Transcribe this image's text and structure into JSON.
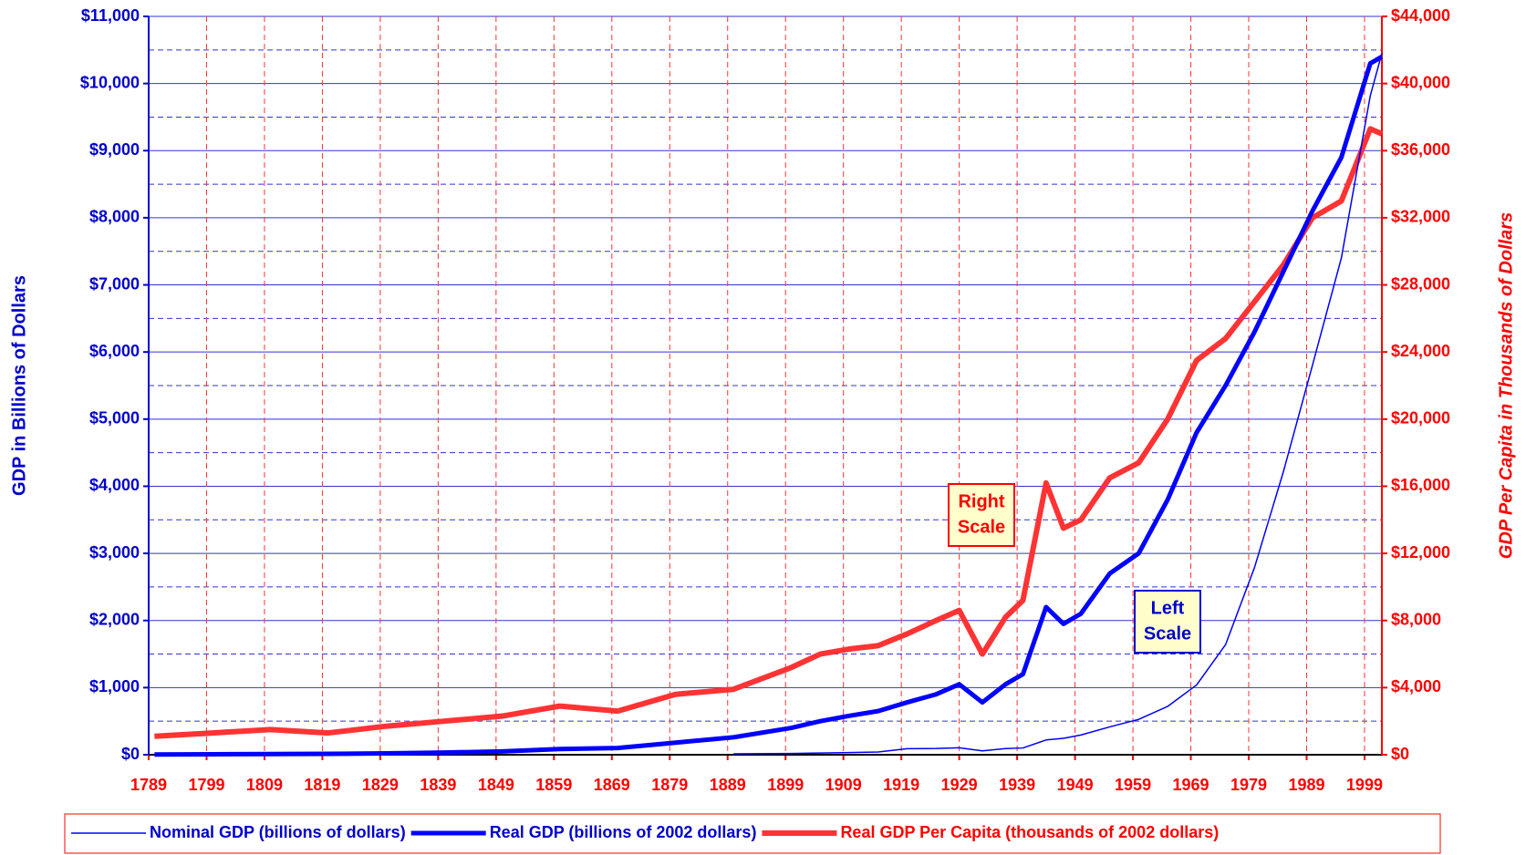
{
  "chart_data": {
    "type": "line",
    "y_label": "GDP in Billions of Dollars",
    "y2_label": "GDP Per Capita in Thousands of Dollars",
    "x": [
      1790,
      1800,
      1810,
      1820,
      1830,
      1840,
      1850,
      1860,
      1870,
      1880,
      1890,
      1900,
      1905,
      1910,
      1915,
      1920,
      1925,
      1929,
      1933,
      1937,
      1940,
      1944,
      1947,
      1950,
      1955,
      1960,
      1965,
      1970,
      1975,
      1980,
      1985,
      1990,
      1995,
      2000,
      2002
    ],
    "series": [
      {
        "name": "Nominal GDP (billions of dollars)",
        "color": "#0000ff",
        "width": 1.5,
        "axis": "y",
        "values": [
          null,
          null,
          null,
          null,
          null,
          null,
          null,
          null,
          null,
          null,
          13,
          19,
          25,
          33,
          40,
          90,
          93,
          104,
          57,
          92,
          101,
          220,
          245,
          294,
          415,
          527,
          720,
          1040,
          1640,
          2790,
          4220,
          5800,
          7400,
          9820,
          10450
        ]
      },
      {
        "name": "Real GDP (billions of 2002 dollars)",
        "color": "#0000ff",
        "width": 5,
        "axis": "y",
        "values": [
          4,
          7,
          10,
          14,
          20,
          32,
          50,
          85,
          100,
          180,
          260,
          400,
          500,
          580,
          650,
          780,
          900,
          1050,
          780,
          1050,
          1200,
          2200,
          1950,
          2100,
          2700,
          3000,
          3800,
          4800,
          5500,
          6300,
          7200,
          8100,
          8900,
          10300,
          10400
        ]
      },
      {
        "name": "Real GDP Per Capita (thousands of 2002 dollars)",
        "color": "#ff3333",
        "width": 6,
        "axis": "y2",
        "values": [
          1100,
          1300,
          1500,
          1300,
          1700,
          2000,
          2300,
          2900,
          2600,
          3600,
          3900,
          5200,
          6000,
          6300,
          6500,
          7200,
          8000,
          8600,
          6000,
          8200,
          9200,
          16200,
          13500,
          14000,
          16500,
          17400,
          20000,
          23500,
          24800,
          27000,
          29200,
          32000,
          33000,
          37300,
          37000
        ]
      }
    ],
    "xlim": [
      1789,
      2002
    ],
    "xticks": [
      1789,
      1799,
      1809,
      1819,
      1829,
      1839,
      1849,
      1859,
      1869,
      1879,
      1889,
      1899,
      1909,
      1919,
      1929,
      1939,
      1949,
      1959,
      1969,
      1979,
      1989,
      1999
    ],
    "ylim": [
      0,
      11000
    ],
    "yticks": [
      {
        "value": 0,
        "label": "$0"
      },
      {
        "value": 1000,
        "label": "$1,000"
      },
      {
        "value": 2000,
        "label": "$2,000"
      },
      {
        "value": 3000,
        "label": "$3,000"
      },
      {
        "value": 4000,
        "label": "$4,000"
      },
      {
        "value": 5000,
        "label": "$5,000"
      },
      {
        "value": 6000,
        "label": "$6,000"
      },
      {
        "value": 7000,
        "label": "$7,000"
      },
      {
        "value": 8000,
        "label": "$8,000"
      },
      {
        "value": 9000,
        "label": "$9,000"
      },
      {
        "value": 10000,
        "label": "$10,000"
      },
      {
        "value": 11000,
        "label": "$11,000"
      }
    ],
    "y2lim": [
      0,
      44000
    ],
    "y2ticks": [
      {
        "value": 0,
        "label": "$0"
      },
      {
        "value": 4000,
        "label": "$4,000"
      },
      {
        "value": 8000,
        "label": "$8,000"
      },
      {
        "value": 12000,
        "label": "$12,000"
      },
      {
        "value": 16000,
        "label": "$16,000"
      },
      {
        "value": 20000,
        "label": "$20,000"
      },
      {
        "value": 24000,
        "label": "$24,000"
      },
      {
        "value": 28000,
        "label": "$28,000"
      },
      {
        "value": 32000,
        "label": "$32,000"
      },
      {
        "value": 36000,
        "label": "$36,000"
      },
      {
        "value": 40000,
        "label": "$40,000"
      },
      {
        "value": 44000,
        "label": "$44,000"
      }
    ],
    "grid": true,
    "annotations": [
      [
        "Right",
        "Scale"
      ],
      [
        "Left",
        "Scale"
      ]
    ]
  }
}
